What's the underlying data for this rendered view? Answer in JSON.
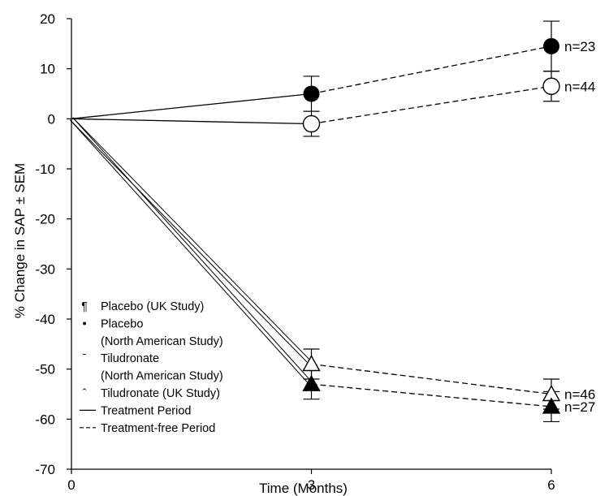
{
  "chart_data": {
    "type": "line",
    "xlabel": "Time (Months)",
    "ylabel": "% Change in SAP ± SEM",
    "xlim": [
      0,
      6
    ],
    "ylim": [
      -70,
      20
    ],
    "xticks": [
      0,
      3,
      6
    ],
    "yticks": [
      20,
      10,
      0,
      -10,
      -20,
      -30,
      -40,
      -50,
      -60,
      -70
    ],
    "grid": false,
    "legend_position": "bottom-left",
    "series": [
      {
        "id": "placebo-uk",
        "marker": "filled-circle",
        "points": [
          {
            "x": 0,
            "y": 0
          },
          {
            "x": 3,
            "y": 5
          },
          {
            "x": 6,
            "y": 14.5
          }
        ],
        "errors": [
          0,
          3.5,
          5
        ],
        "n_label": "n=23"
      },
      {
        "id": "placebo-na",
        "marker": "open-circle",
        "points": [
          {
            "x": 0,
            "y": 0
          },
          {
            "x": 3,
            "y": -1
          },
          {
            "x": 6,
            "y": 6.5
          }
        ],
        "errors": [
          0,
          2.5,
          3
        ],
        "n_label": "n=44"
      },
      {
        "id": "tiludronate-na",
        "marker": "open-triangle",
        "points": [
          {
            "x": 0,
            "y": 0
          },
          {
            "x": 3,
            "y": -49
          },
          {
            "x": 6,
            "y": -55
          }
        ],
        "errors": [
          0,
          3,
          3
        ],
        "n_label": "n=46"
      },
      {
        "id": "tiludronate-uk",
        "marker": "filled-triangle",
        "points": [
          {
            "x": 0,
            "y": 0
          },
          {
            "x": 3,
            "y": -53
          },
          {
            "x": 6,
            "y": -57.5
          }
        ],
        "errors": [
          0,
          3,
          3
        ],
        "n_label": "n=27"
      }
    ],
    "legend": [
      {
        "symbol": "¶",
        "label": "Placebo (UK Study)"
      },
      {
        "symbol": "•",
        "label": "Placebo"
      },
      {
        "symbol": "",
        "label": "(North American Study)"
      },
      {
        "symbol": "ˉ",
        "label": "Tiludronate"
      },
      {
        "symbol": "",
        "label": "(North American Study)"
      },
      {
        "symbol": "ˆ",
        "label": "Tiludronate (UK Study)"
      },
      {
        "line": "solid",
        "label": "Treatment Period"
      },
      {
        "line": "dashed",
        "label": "Treatment-free Period"
      }
    ]
  }
}
